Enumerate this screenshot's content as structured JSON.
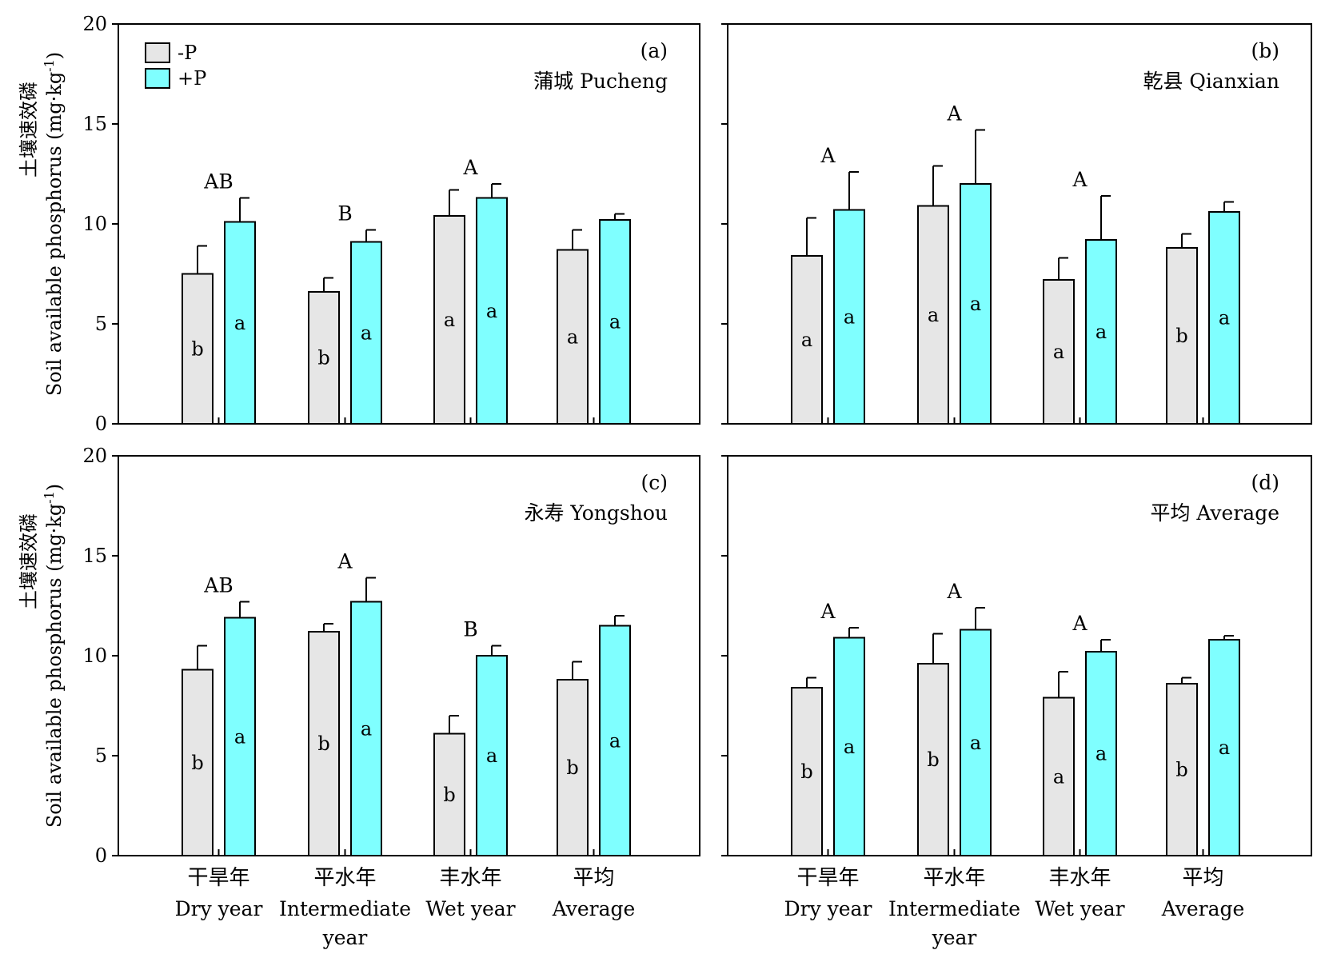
{
  "figure": {
    "ylabel_cn": "土壤速效磷",
    "ylabel_en": "Soil available phosphorus (mg·kg",
    "ylabel_sup": "-1",
    "ylabel_close": ")",
    "legend": [
      {
        "label": "-P",
        "color": "#e6e6e6"
      },
      {
        "label": "+P",
        "color": "#7fffff"
      }
    ]
  },
  "chart_data": [
    {
      "type": "bar",
      "panel_label": "(a)",
      "title": "蒲城 Pucheng",
      "categories_cn": [
        "干旱年",
        "平水年",
        "丰水年",
        "平均"
      ],
      "categories_en": [
        "Dry year",
        "Intermediate year",
        "Wet year",
        "Average"
      ],
      "ylim": [
        0,
        20
      ],
      "yticks": [
        "0",
        "5",
        "10",
        "15",
        "20"
      ],
      "series": [
        {
          "name": "-P",
          "color": "#e6e6e6",
          "values": [
            7.5,
            6.6,
            10.4,
            8.7
          ],
          "errors": [
            1.4,
            0.7,
            1.3,
            1.0
          ],
          "letters": [
            "b",
            "b",
            "a",
            "a"
          ]
        },
        {
          "name": "+P",
          "color": "#7fffff",
          "values": [
            10.1,
            9.1,
            11.3,
            10.2
          ],
          "errors": [
            1.2,
            0.6,
            0.7,
            0.3
          ],
          "letters": [
            "a",
            "a",
            "a",
            "a"
          ]
        }
      ],
      "group_letters": [
        "AB",
        "B",
        "A",
        ""
      ]
    },
    {
      "type": "bar",
      "panel_label": "(b)",
      "title": "乾县 Qianxian",
      "categories_cn": [
        "干旱年",
        "平水年",
        "丰水年",
        "平均"
      ],
      "categories_en": [
        "Dry year",
        "Intermediate year",
        "Wet year",
        "Average"
      ],
      "ylim": [
        0,
        20
      ],
      "yticks": [
        "0",
        "5",
        "10",
        "15",
        "20"
      ],
      "series": [
        {
          "name": "-P",
          "color": "#e6e6e6",
          "values": [
            8.4,
            10.9,
            7.2,
            8.8
          ],
          "errors": [
            1.9,
            2.0,
            1.1,
            0.7
          ],
          "letters": [
            "a",
            "a",
            "a",
            "b"
          ]
        },
        {
          "name": "+P",
          "color": "#7fffff",
          "values": [
            10.7,
            12.0,
            9.2,
            10.6
          ],
          "errors": [
            1.9,
            2.7,
            2.2,
            0.5
          ],
          "letters": [
            "a",
            "a",
            "a",
            "a"
          ]
        }
      ],
      "group_letters": [
        "A",
        "A",
        "A",
        ""
      ]
    },
    {
      "type": "bar",
      "panel_label": "(c)",
      "title": "永寿 Yongshou",
      "categories_cn": [
        "干旱年",
        "平水年",
        "丰水年",
        "平均"
      ],
      "categories_en": [
        "Dry year",
        "Intermediate year",
        "Wet year",
        "Average"
      ],
      "ylim": [
        0,
        20
      ],
      "yticks": [
        "0",
        "5",
        "10",
        "15",
        "20"
      ],
      "series": [
        {
          "name": "-P",
          "color": "#e6e6e6",
          "values": [
            9.3,
            11.2,
            6.1,
            8.8
          ],
          "errors": [
            1.2,
            0.4,
            0.9,
            0.9
          ],
          "letters": [
            "b",
            "b",
            "b",
            "b"
          ]
        },
        {
          "name": "+P",
          "color": "#7fffff",
          "values": [
            11.9,
            12.7,
            10.0,
            11.5
          ],
          "errors": [
            0.8,
            1.2,
            0.5,
            0.5
          ],
          "letters": [
            "a",
            "a",
            "a",
            "a"
          ]
        }
      ],
      "group_letters": [
        "AB",
        "A",
        "B",
        ""
      ]
    },
    {
      "type": "bar",
      "panel_label": "(d)",
      "title": "平均 Average",
      "categories_cn": [
        "干旱年",
        "平水年",
        "丰水年",
        "平均"
      ],
      "categories_en": [
        "Dry year",
        "Intermediate year",
        "Wet year",
        "Average"
      ],
      "ylim": [
        0,
        20
      ],
      "yticks": [
        "0",
        "5",
        "10",
        "15",
        "20"
      ],
      "series": [
        {
          "name": "-P",
          "color": "#e6e6e6",
          "values": [
            8.4,
            9.6,
            7.9,
            8.6
          ],
          "errors": [
            0.5,
            1.5,
            1.3,
            0.3
          ],
          "letters": [
            "b",
            "b",
            "a",
            "b"
          ]
        },
        {
          "name": "+P",
          "color": "#7fffff",
          "values": [
            10.9,
            11.3,
            10.2,
            10.8
          ],
          "errors": [
            0.5,
            1.1,
            0.6,
            0.2
          ],
          "letters": [
            "a",
            "a",
            "a",
            "a"
          ]
        }
      ],
      "group_letters": [
        "A",
        "A",
        "A",
        ""
      ]
    }
  ]
}
